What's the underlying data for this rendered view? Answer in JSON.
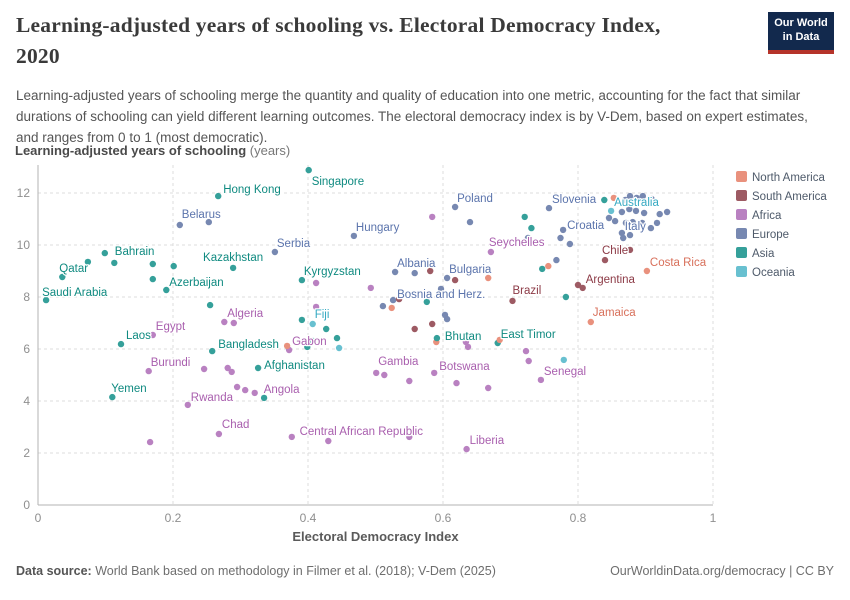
{
  "header": {
    "title_line1": "Learning-adjusted years of schooling vs. Electoral Democracy Index,",
    "title_line2": "2020",
    "logo_line1": "Our World",
    "logo_line2": "in Data"
  },
  "subtitle": "Learning-adjusted years of schooling merge the quantity and quality of education into one metric, accounting for the fact that similar durations of schooling can yield different learning outcomes. The electoral democracy index is by V-Dem, based on expert estimates, and ranges from 0 to 1 (most democratic).",
  "footer": {
    "datasource_label": "Data source:",
    "datasource_text": " World Bank based on methodology in Filmer et al. (2018); V-Dem (2025)",
    "rights": "OurWorldinData.org/democracy | CC BY"
  },
  "chart_data": {
    "type": "scatter",
    "title": "Learning-adjusted years of schooling vs. Electoral Democracy Index, 2020",
    "x_axis": {
      "label": "Electoral Democracy Index",
      "ticks": [
        0,
        0.2,
        0.4,
        0.6,
        0.8,
        1
      ],
      "range": [
        0,
        1
      ],
      "grid": true
    },
    "y_axis": {
      "label_bold": "Learning-adjusted years of schooling",
      "label_unit": " (years)",
      "ticks": [
        0,
        2,
        4,
        6,
        8,
        10,
        12
      ],
      "range": [
        0,
        13.2
      ],
      "grid": true
    },
    "legend_position": "right",
    "legend_order": [
      "north_america",
      "south_america",
      "africa",
      "europe",
      "asia",
      "oceania"
    ],
    "continents": {
      "north_america": {
        "label": "North America",
        "dot": "#E9917D",
        "text": "#D8705B"
      },
      "south_america": {
        "label": "South America",
        "dot": "#9D5A63",
        "text": "#8C3A46"
      },
      "africa": {
        "label": "Africa",
        "dot": "#B981C1",
        "text": "#A95FAE"
      },
      "europe": {
        "label": "Europe",
        "dot": "#7788B1",
        "text": "#5B74AC"
      },
      "asia": {
        "label": "Asia",
        "dot": "#35A09A",
        "text": "#0F8A80"
      },
      "oceania": {
        "label": "Oceania",
        "dot": "#68C0D0",
        "text": "#35A9C2"
      }
    },
    "point_format": [
      "x",
      "y",
      "continent",
      "label",
      "label_dx",
      "label_dy",
      "label_anchor"
    ],
    "points": [
      [
        0.012,
        7.88,
        "asia",
        "Saudi Arabia",
        -4,
        -8,
        "start"
      ],
      [
        0.036,
        8.77,
        "asia",
        "Qatar",
        -3,
        -9,
        "start"
      ],
      [
        0.099,
        9.69,
        "asia",
        "Bahrain",
        10,
        -2,
        "start"
      ],
      [
        0.074,
        9.35,
        "asia",
        "",
        0,
        0,
        ""
      ],
      [
        0.113,
        9.31,
        "asia",
        "",
        0,
        0,
        ""
      ],
      [
        0.11,
        4.15,
        "asia",
        "Yemen",
        -1,
        -9,
        "start"
      ],
      [
        0.123,
        6.19,
        "asia",
        "Laos",
        5,
        -9,
        "start"
      ],
      [
        0.17,
        6.54,
        "africa",
        "Egypt",
        3,
        -9,
        "start"
      ],
      [
        0.164,
        5.15,
        "africa",
        "Burundi",
        2,
        -9,
        "start"
      ],
      [
        0.222,
        3.85,
        "africa",
        "Rwanda",
        3,
        -8,
        "start"
      ],
      [
        0.268,
        2.73,
        "africa",
        "Chad",
        3,
        -10,
        "start"
      ],
      [
        0.166,
        2.42,
        "africa",
        "",
        0,
        0,
        ""
      ],
      [
        0.267,
        11.88,
        "asia",
        "Hong Kong",
        5,
        -7,
        "start"
      ],
      [
        0.21,
        10.77,
        "europe",
        "Belarus",
        2,
        -11,
        "start"
      ],
      [
        0.253,
        10.88,
        "europe",
        "",
        0,
        0,
        ""
      ],
      [
        0.289,
        9.12,
        "asia",
        "Kazakhstan",
        0,
        -11,
        "middle"
      ],
      [
        0.17,
        9.27,
        "asia",
        "",
        0,
        0,
        ""
      ],
      [
        0.201,
        9.19,
        "asia",
        "",
        0,
        0,
        ""
      ],
      [
        0.19,
        8.27,
        "asia",
        "Azerbaijan",
        3,
        -8,
        "start"
      ],
      [
        0.17,
        8.69,
        "asia",
        "",
        0,
        0,
        ""
      ],
      [
        0.255,
        7.69,
        "asia",
        "",
        0,
        0,
        ""
      ],
      [
        0.276,
        7.04,
        "africa",
        "Algeria",
        3,
        -9,
        "start"
      ],
      [
        0.29,
        7.0,
        "africa",
        "",
        0,
        0,
        ""
      ],
      [
        0.258,
        5.92,
        "asia",
        "Bangladesh",
        6,
        -7,
        "start"
      ],
      [
        0.246,
        5.23,
        "africa",
        "",
        0,
        0,
        ""
      ],
      [
        0.281,
        5.27,
        "africa",
        "",
        0,
        0,
        ""
      ],
      [
        0.287,
        5.12,
        "africa",
        "",
        0,
        0,
        ""
      ],
      [
        0.326,
        5.27,
        "asia",
        "Afghanistan",
        6,
        -3,
        "start"
      ],
      [
        0.321,
        4.31,
        "africa",
        "Angola",
        9,
        -4,
        "start"
      ],
      [
        0.295,
        4.54,
        "africa",
        "",
        0,
        0,
        ""
      ],
      [
        0.307,
        4.42,
        "africa",
        "",
        0,
        0,
        ""
      ],
      [
        0.335,
        4.12,
        "asia",
        "",
        0,
        0,
        ""
      ],
      [
        0.372,
        5.96,
        "africa",
        "Gabon",
        3,
        -9,
        "start"
      ],
      [
        0.369,
        6.12,
        "north_america",
        "",
        0,
        0,
        ""
      ],
      [
        0.399,
        6.08,
        "asia",
        "",
        0,
        0,
        ""
      ],
      [
        0.407,
        6.31,
        "asia",
        "",
        0,
        0,
        ""
      ],
      [
        0.401,
        12.88,
        "asia",
        "Singapore",
        3,
        11,
        "start"
      ],
      [
        0.351,
        9.73,
        "europe",
        "Serbia",
        2,
        -9,
        "start"
      ],
      [
        0.391,
        8.65,
        "asia",
        "Kyrgyzstan",
        2,
        -9,
        "start"
      ],
      [
        0.412,
        8.54,
        "africa",
        "",
        0,
        0,
        ""
      ],
      [
        0.407,
        6.96,
        "oceania",
        "Fiji",
        2,
        -10,
        "start"
      ],
      [
        0.391,
        7.12,
        "asia",
        "",
        0,
        0,
        ""
      ],
      [
        0.427,
        6.77,
        "asia",
        "",
        0,
        0,
        ""
      ],
      [
        0.412,
        7.62,
        "africa",
        "",
        0,
        0,
        ""
      ],
      [
        0.446,
        6.04,
        "oceania",
        "",
        0,
        0,
        ""
      ],
      [
        0.443,
        6.42,
        "asia",
        "",
        0,
        0,
        ""
      ],
      [
        0.468,
        10.35,
        "europe",
        "Hungary",
        2,
        -9,
        "start"
      ],
      [
        0.501,
        5.08,
        "africa",
        "Gambia",
        2,
        -12,
        "start"
      ],
      [
        0.513,
        5.0,
        "africa",
        "",
        0,
        0,
        ""
      ],
      [
        0.55,
        4.77,
        "africa",
        "",
        0,
        0,
        ""
      ],
      [
        0.43,
        2.46,
        "africa",
        "Central African Republic",
        33,
        -10,
        "middle"
      ],
      [
        0.376,
        2.62,
        "africa",
        "",
        0,
        0,
        ""
      ],
      [
        0.55,
        2.62,
        "africa",
        "",
        0,
        0,
        ""
      ],
      [
        0.529,
        8.96,
        "europe",
        "Albania",
        2,
        -9,
        "start"
      ],
      [
        0.526,
        7.88,
        "europe",
        "Bosnia and Herz.",
        4,
        -6,
        "start"
      ],
      [
        0.511,
        7.65,
        "europe",
        "",
        0,
        0,
        ""
      ],
      [
        0.524,
        7.58,
        "north_america",
        "",
        0,
        0,
        ""
      ],
      [
        0.493,
        8.35,
        "africa",
        "",
        0,
        0,
        ""
      ],
      [
        0.558,
        8.92,
        "europe",
        "",
        0,
        0,
        ""
      ],
      [
        0.606,
        8.73,
        "europe",
        "Bulgaria",
        2,
        -9,
        "start"
      ],
      [
        0.597,
        8.31,
        "europe",
        "",
        0,
        0,
        ""
      ],
      [
        0.581,
        9.0,
        "south_america",
        "",
        0,
        0,
        ""
      ],
      [
        0.618,
        8.65,
        "south_america",
        "",
        0,
        0,
        ""
      ],
      [
        0.667,
        8.73,
        "north_america",
        "",
        0,
        0,
        ""
      ],
      [
        0.576,
        7.81,
        "asia",
        "",
        0,
        0,
        ""
      ],
      [
        0.603,
        7.31,
        "europe",
        "",
        0,
        0,
        ""
      ],
      [
        0.606,
        7.15,
        "europe",
        "",
        0,
        0,
        ""
      ],
      [
        0.558,
        6.77,
        "south_america",
        "",
        0,
        0,
        ""
      ],
      [
        0.584,
        6.96,
        "south_america",
        "",
        0,
        0,
        ""
      ],
      [
        0.59,
        6.27,
        "north_america",
        "",
        0,
        0,
        ""
      ],
      [
        0.634,
        6.27,
        "africa",
        "",
        0,
        0,
        ""
      ],
      [
        0.637,
        6.08,
        "africa",
        "",
        0,
        0,
        ""
      ],
      [
        0.591,
        6.42,
        "asia",
        "Bhutan",
        8,
        -2,
        "start"
      ],
      [
        0.681,
        6.23,
        "asia",
        "East Timor",
        3,
        -9,
        "start"
      ],
      [
        0.684,
        6.35,
        "north_america",
        "",
        0,
        0,
        ""
      ],
      [
        0.587,
        5.08,
        "africa",
        "Botswana",
        5,
        -7,
        "start"
      ],
      [
        0.62,
        4.69,
        "africa",
        "",
        0,
        0,
        ""
      ],
      [
        0.667,
        4.5,
        "africa",
        "",
        0,
        0,
        ""
      ],
      [
        0.635,
        2.15,
        "africa",
        "Liberia",
        3,
        -9,
        "start"
      ],
      [
        0.618,
        11.46,
        "europe",
        "Poland",
        2,
        -9,
        "start"
      ],
      [
        0.584,
        11.08,
        "africa",
        "",
        0,
        0,
        ""
      ],
      [
        0.64,
        10.88,
        "europe",
        "",
        0,
        0,
        ""
      ],
      [
        0.703,
        7.85,
        "south_america",
        "Brazil",
        0,
        -11,
        "start"
      ],
      [
        0.535,
        7.92,
        "south_america",
        "",
        0,
        0,
        ""
      ],
      [
        0.671,
        9.73,
        "africa",
        "Seychelles",
        -2,
        -10,
        "start"
      ],
      [
        0.721,
        11.08,
        "asia",
        "",
        0,
        0,
        ""
      ],
      [
        0.731,
        10.65,
        "asia",
        "",
        0,
        0,
        ""
      ],
      [
        0.726,
        10.27,
        "europe",
        "",
        0,
        0,
        ""
      ],
      [
        0.774,
        10.27,
        "europe",
        "",
        0,
        0,
        ""
      ],
      [
        0.788,
        10.04,
        "europe",
        "",
        0,
        0,
        ""
      ],
      [
        0.768,
        9.42,
        "europe",
        "",
        0,
        0,
        ""
      ],
      [
        0.756,
        9.19,
        "north_america",
        "",
        0,
        0,
        ""
      ],
      [
        0.747,
        9.08,
        "asia",
        "",
        0,
        0,
        ""
      ],
      [
        0.757,
        11.42,
        "europe",
        "Slovenia",
        3,
        -9,
        "start"
      ],
      [
        0.778,
        10.58,
        "europe",
        "Croatia",
        4,
        -5,
        "start"
      ],
      [
        0.812,
        10.73,
        "north_america",
        "",
        0,
        0,
        ""
      ],
      [
        0.908,
        10.65,
        "europe",
        "Italy",
        -5,
        -2,
        "end"
      ],
      [
        0.849,
        11.31,
        "oceania",
        "Australia",
        3,
        -9,
        "start"
      ],
      [
        0.839,
        11.73,
        "asia",
        "",
        0,
        0,
        ""
      ],
      [
        0.853,
        11.81,
        "north_america",
        "",
        0,
        0,
        ""
      ],
      [
        0.877,
        11.88,
        "europe",
        "",
        0,
        0,
        ""
      ],
      [
        0.887,
        11.81,
        "europe",
        "",
        0,
        0,
        ""
      ],
      [
        0.896,
        11.88,
        "europe",
        "",
        0,
        0,
        ""
      ],
      [
        0.909,
        11.77,
        "europe",
        "",
        0,
        0,
        ""
      ],
      [
        0.87,
        11.73,
        "europe",
        "",
        0,
        0,
        ""
      ],
      [
        0.865,
        11.27,
        "europe",
        "",
        0,
        0,
        ""
      ],
      [
        0.876,
        11.38,
        "europe",
        "",
        0,
        0,
        ""
      ],
      [
        0.886,
        11.31,
        "europe",
        "",
        0,
        0,
        ""
      ],
      [
        0.898,
        11.23,
        "europe",
        "",
        0,
        0,
        ""
      ],
      [
        0.921,
        11.19,
        "europe",
        "",
        0,
        0,
        ""
      ],
      [
        0.932,
        11.27,
        "europe",
        "",
        0,
        0,
        ""
      ],
      [
        0.846,
        11.04,
        "europe",
        "",
        0,
        0,
        ""
      ],
      [
        0.855,
        10.92,
        "europe",
        "",
        0,
        0,
        ""
      ],
      [
        0.871,
        10.85,
        "europe",
        "",
        0,
        0,
        ""
      ],
      [
        0.881,
        10.88,
        "europe",
        "",
        0,
        0,
        ""
      ],
      [
        0.895,
        10.85,
        "europe",
        "",
        0,
        0,
        ""
      ],
      [
        0.917,
        10.85,
        "europe",
        "",
        0,
        0,
        ""
      ],
      [
        0.865,
        10.46,
        "europe",
        "",
        0,
        0,
        ""
      ],
      [
        0.877,
        10.38,
        "europe",
        "",
        0,
        0,
        ""
      ],
      [
        0.867,
        10.27,
        "europe",
        "",
        0,
        0,
        ""
      ],
      [
        0.84,
        9.42,
        "south_america",
        "Chile",
        -3,
        -10,
        "start"
      ],
      [
        0.877,
        9.81,
        "south_america",
        "",
        0,
        0,
        ""
      ],
      [
        0.902,
        9.0,
        "north_america",
        "Costa Rica",
        3,
        -9,
        "start"
      ],
      [
        0.807,
        8.35,
        "south_america",
        "Argentina",
        3,
        -9,
        "start"
      ],
      [
        0.8,
        8.46,
        "south_america",
        "",
        0,
        0,
        ""
      ],
      [
        0.819,
        7.04,
        "north_america",
        "Jamaica",
        2,
        -10,
        "start"
      ],
      [
        0.782,
        8.0,
        "asia",
        "",
        0,
        0,
        ""
      ],
      [
        0.745,
        4.81,
        "africa",
        "Senegal",
        3,
        -9,
        "start"
      ],
      [
        0.723,
        5.92,
        "africa",
        "",
        0,
        0,
        ""
      ],
      [
        0.727,
        5.54,
        "africa",
        "",
        0,
        0,
        ""
      ],
      [
        0.779,
        5.58,
        "oceania",
        "",
        0,
        0,
        ""
      ]
    ]
  }
}
